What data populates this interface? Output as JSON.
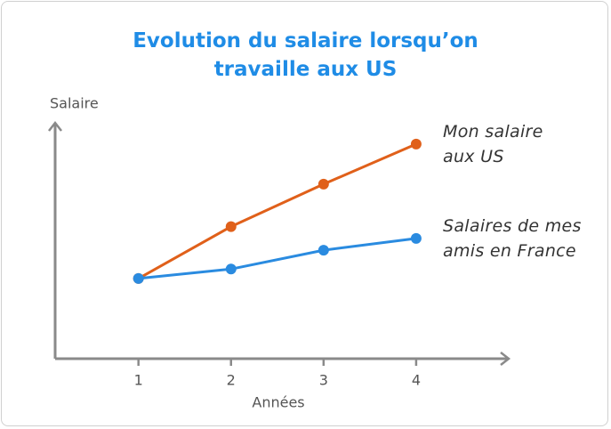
{
  "chart_data": {
    "type": "line",
    "title": "Evolution du salaire lorsqu’on travaille aux US",
    "y_label": "Salaire",
    "x_label": "Années",
    "x": [
      1,
      2,
      3,
      4
    ],
    "xlim": [
      0.1,
      5
    ],
    "xticks": [
      1,
      2,
      3,
      4
    ],
    "ylim": [
      0,
      100
    ],
    "series": [
      {
        "name": "Mon salaire aux US",
        "color": "#e0601a",
        "values": [
          34,
          56,
          74,
          91
        ]
      },
      {
        "name": "Salaires de mes amis en France",
        "color": "#2a8be0",
        "values": [
          34,
          38,
          46,
          51
        ]
      }
    ]
  }
}
